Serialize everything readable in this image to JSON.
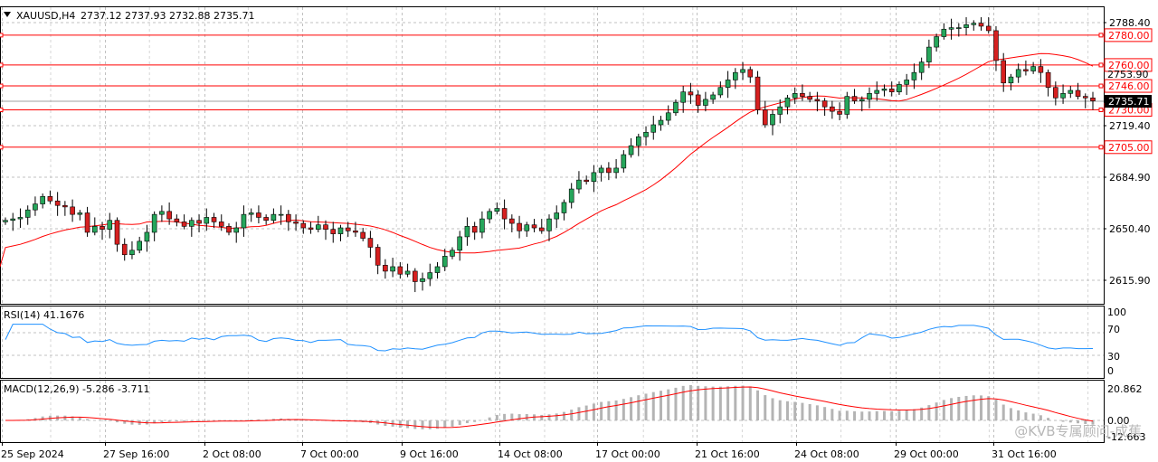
{
  "header": {
    "symbol": "XAUUSD,H4",
    "ohlc": "2737.12 2737.93 2732.88 2735.71"
  },
  "chart_data": [
    {
      "type": "candlestick",
      "symbol": "XAUUSD",
      "timeframe": "H4",
      "price_axis_ticks": [
        "2788.40",
        "2719.40",
        "2684.90",
        "2650.40",
        "2615.90"
      ],
      "ylim": [
        2600,
        2800
      ],
      "current_price": "2735.71",
      "horizontal_levels": [
        "2780.00",
        "2760.00",
        "2746.00",
        "2730.00",
        "2705.00"
      ],
      "overlapped_tick": "2753.90",
      "moving_average": "red line",
      "x_ticks": [
        "25 Sep 2024",
        "27 Sep 16:00",
        "2 Oct 08:00",
        "7 Oct 00:00",
        "9 Oct 16:00",
        "14 Oct 08:00",
        "17 Oct 00:00",
        "21 Oct 16:00",
        "24 Oct 08:00",
        "29 Oct 00:00",
        "31 Oct 16:00"
      ],
      "candle_closes_approx": [
        2656,
        2657,
        2658,
        2663,
        2667,
        2672,
        2669,
        2666,
        2665,
        2660,
        2661,
        2648,
        2652,
        2650,
        2656,
        2640,
        2633,
        2636,
        2642,
        2648,
        2660,
        2662,
        2657,
        2655,
        2652,
        2656,
        2654,
        2658,
        2655,
        2652,
        2648,
        2651,
        2660,
        2661,
        2658,
        2656,
        2660,
        2660,
        2655,
        2654,
        2651,
        2650,
        2653,
        2650,
        2647,
        2651,
        2649,
        2648,
        2644,
        2638,
        2626,
        2622,
        2625,
        2620,
        2622,
        2615,
        2617,
        2621,
        2625,
        2632,
        2636,
        2645,
        2652,
        2648,
        2657,
        2662,
        2664,
        2657,
        2654,
        2649,
        2653,
        2651,
        2649,
        2657,
        2661,
        2668,
        2677,
        2683,
        2682,
        2688,
        2691,
        2688,
        2691,
        2700,
        2706,
        2712,
        2715,
        2720,
        2723,
        2728,
        2735,
        2742,
        2740,
        2733,
        2737,
        2740,
        2745,
        2750,
        2755,
        2757,
        2752,
        2730,
        2720,
        2727,
        2732,
        2738,
        2741,
        2739,
        2737,
        2736,
        2732,
        2729,
        2727,
        2739,
        2736,
        2737,
        2741,
        2743,
        2744,
        2742,
        2747,
        2750,
        2755,
        2762,
        2772,
        2779,
        2784,
        2785,
        2785,
        2787,
        2788,
        2786,
        2783,
        2763,
        2748,
        2752,
        2757,
        2756,
        2759,
        2755,
        2745,
        2738,
        2741,
        2743,
        2739,
        2738,
        2736
      ]
    },
    {
      "type": "line",
      "title": "RSI(14) 41.1676",
      "ticks": [
        "100",
        "70",
        "30",
        "0"
      ],
      "ylim": [
        0,
        100
      ],
      "current_value": 41.1676
    },
    {
      "type": "bar",
      "title": "MACD(12,26,9) -5.286 -3.711",
      "ticks": [
        "20.862",
        "0.00",
        "-12.663"
      ],
      "macd": -5.286,
      "signal": -3.711
    }
  ],
  "watermark": "@KVB专属顾问-成蕉"
}
